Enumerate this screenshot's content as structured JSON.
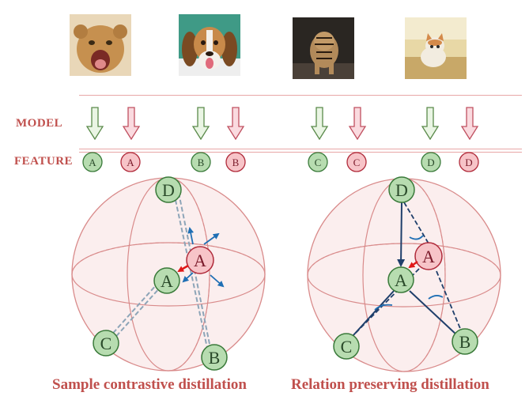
{
  "row_labels": {
    "model": "MODEL",
    "feature": "FEATURE"
  },
  "images": [
    {
      "subject": "lion cub",
      "node": "A"
    },
    {
      "subject": "beagle puppy",
      "node": "B"
    },
    {
      "subject": "tiger cub",
      "node": "C"
    },
    {
      "subject": "kitten",
      "node": "D"
    }
  ],
  "feature_labels": [
    "A",
    "A",
    "B",
    "B",
    "C",
    "C",
    "D",
    "D"
  ],
  "left_sphere": {
    "caption": "Sample contrastive distillation",
    "nodes": {
      "A_student": "A",
      "A_teacher": "A",
      "B": "B",
      "C": "C",
      "D": "D"
    }
  },
  "right_sphere": {
    "caption": "Relation preserving  distillation",
    "nodes": {
      "A_student": "A",
      "A_teacher": "A",
      "B": "B",
      "C": "C",
      "D": "D"
    }
  },
  "colors": {
    "student_fill": "#b7dcb0",
    "student_stroke": "#3a7a3a",
    "teacher_fill": "#f7c4c8",
    "teacher_stroke": "#b02a3a",
    "sphere_line": "#d98b8b",
    "accent_red": "#c0504d",
    "arrow_blue": "#1f6fb4",
    "dark_blue": "#1f3f6b",
    "dash_gray": "#8da5b8"
  }
}
